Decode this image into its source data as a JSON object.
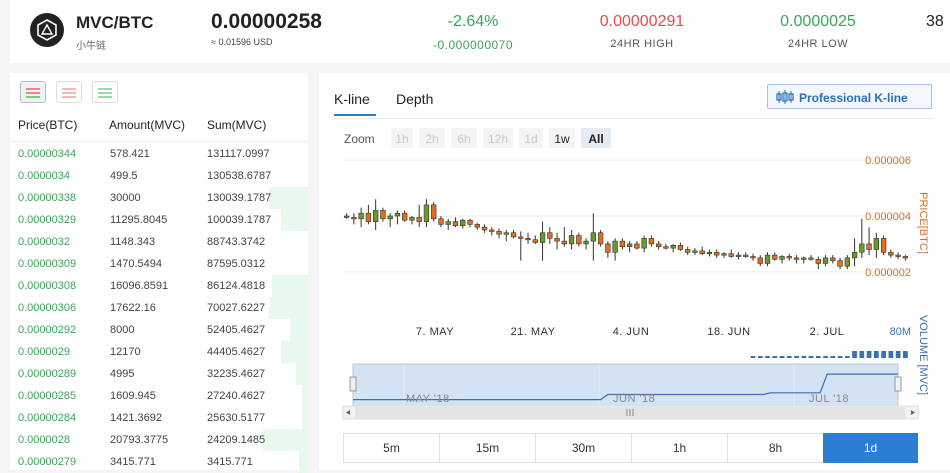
{
  "header": {
    "pair": "MVC/BTC",
    "pair_cn": "小牛链",
    "last_price": "0.00000258",
    "last_price_usd": "≈ 0.01596 USD",
    "change_pct": "-2.64%",
    "change_abs": "-0.000000070",
    "high_value": "0.00000291",
    "high_label": "24HR HIGH",
    "low_value": "0.0000025",
    "low_label": "24HR LOW",
    "volume_partial": "38"
  },
  "colors": {
    "up": "#3aa55b",
    "down": "#e24d4d",
    "accent": "#2a7fd4",
    "price_axis": "#d0702c",
    "volume_axis": "#3a6fb0"
  },
  "order_book": {
    "columns": [
      "Price(BTC)",
      "Amount(MVC)",
      "Sum(MVC)"
    ],
    "rows": [
      {
        "price": "0.00000344",
        "amount": "578.421",
        "sum": "131117.0997",
        "depth": 0.0
      },
      {
        "price": "0.0000034",
        "amount": "499.5",
        "sum": "130538.6787",
        "depth": 0.0
      },
      {
        "price": "0.00000338",
        "amount": "30000",
        "sum": "130039.1787",
        "depth": 0.13
      },
      {
        "price": "0.00000329",
        "amount": "11295.8045",
        "sum": "100039.1787",
        "depth": 0.09
      },
      {
        "price": "0.0000032",
        "amount": "1148.343",
        "sum": "88743.3742",
        "depth": 0.0
      },
      {
        "price": "0.00000309",
        "amount": "1470.5494",
        "sum": "87595.0312",
        "depth": 0.0
      },
      {
        "price": "0.00000308",
        "amount": "16096.8591",
        "sum": "86124.4818",
        "depth": 0.12
      },
      {
        "price": "0.00000306",
        "amount": "17622.16",
        "sum": "70027.6227",
        "depth": 0.13
      },
      {
        "price": "0.00000292",
        "amount": "8000",
        "sum": "52405.4627",
        "depth": 0.06
      },
      {
        "price": "0.0000029",
        "amount": "12170",
        "sum": "44405.4627",
        "depth": 0.09
      },
      {
        "price": "0.00000289",
        "amount": "4995",
        "sum": "32235.4627",
        "depth": 0.04
      },
      {
        "price": "0.00000285",
        "amount": "1609.945",
        "sum": "27240.4627",
        "depth": 0.02
      },
      {
        "price": "0.00000284",
        "amount": "1421.3692",
        "sum": "25630.5177",
        "depth": 0.02
      },
      {
        "price": "0.0000028",
        "amount": "20793.3775",
        "sum": "24209.1485",
        "depth": 0.15
      },
      {
        "price": "0.00000279",
        "amount": "3415.771",
        "sum": "3415.771",
        "depth": 0.03
      }
    ]
  },
  "chart_panel": {
    "tabs": [
      "K-line",
      "Depth"
    ],
    "active_tab": "K-line",
    "pro_button": "Professional K-line",
    "zoom_label": "Zoom",
    "zoom_options": [
      "1h",
      "2h",
      "6h",
      "12h",
      "1d",
      "1w",
      "All"
    ],
    "zoom_active": "All",
    "intervals": [
      "5m",
      "15m",
      "30m",
      "1h",
      "8h",
      "1d"
    ],
    "interval_active": "1d"
  },
  "chart_data": {
    "type": "candlestick",
    "y_axis_label": "PRICE[BTC]",
    "y_ticks": [
      "0.000006",
      "0.000004",
      "0.000002"
    ],
    "ylim": [
      1.6e-06,
      6.4e-06
    ],
    "volume_axis_label": "VOLUME [MVC]",
    "volume_tick": "80M",
    "x_ticks": [
      "7. MAY",
      "21. MAY",
      "4. JUN",
      "18. JUN",
      "2. JUL"
    ],
    "navigator_labels": [
      "MAY '18",
      "JUN '18",
      "JUL '18"
    ],
    "ohlc": [
      [
        4.0,
        4.1,
        3.9,
        4.0
      ],
      [
        3.95,
        4.1,
        3.7,
        3.9
      ],
      [
        3.9,
        4.3,
        3.6,
        4.1
      ],
      [
        4.1,
        4.4,
        3.7,
        3.8
      ],
      [
        3.8,
        4.6,
        3.5,
        4.2
      ],
      [
        4.2,
        4.3,
        3.8,
        3.9
      ],
      [
        3.9,
        4.1,
        3.6,
        4.0
      ],
      [
        4.0,
        4.2,
        3.7,
        4.1
      ],
      [
        4.1,
        4.2,
        3.8,
        3.85
      ],
      [
        3.85,
        4.0,
        3.7,
        3.95
      ],
      [
        3.95,
        4.4,
        3.6,
        3.8
      ],
      [
        3.8,
        4.6,
        3.6,
        4.4
      ],
      [
        4.4,
        4.5,
        3.8,
        3.9
      ],
      [
        3.9,
        4.0,
        3.6,
        3.7
      ],
      [
        3.7,
        3.9,
        3.5,
        3.8
      ],
      [
        3.8,
        3.95,
        3.6,
        3.65
      ],
      [
        3.65,
        3.9,
        3.55,
        3.85
      ],
      [
        3.85,
        3.9,
        3.6,
        3.7
      ],
      [
        3.7,
        3.75,
        3.5,
        3.6
      ],
      [
        3.6,
        3.7,
        3.4,
        3.5
      ],
      [
        3.5,
        3.6,
        3.3,
        3.45
      ],
      [
        3.45,
        3.55,
        3.2,
        3.35
      ],
      [
        3.35,
        3.5,
        3.1,
        3.4
      ],
      [
        3.4,
        3.5,
        3.2,
        3.25
      ],
      [
        3.25,
        3.45,
        2.4,
        3.2
      ],
      [
        3.2,
        3.4,
        3.0,
        3.15
      ],
      [
        3.15,
        3.3,
        3.0,
        3.05
      ],
      [
        3.05,
        3.8,
        2.4,
        3.4
      ],
      [
        3.4,
        3.6,
        3.0,
        3.2
      ],
      [
        3.2,
        3.4,
        2.8,
        3.1
      ],
      [
        3.1,
        3.6,
        2.9,
        3.0
      ],
      [
        3.0,
        3.5,
        2.8,
        3.3
      ],
      [
        3.3,
        3.4,
        2.9,
        3.0
      ],
      [
        3.0,
        3.2,
        2.8,
        3.1
      ],
      [
        3.1,
        4.1,
        2.4,
        3.4
      ],
      [
        3.4,
        3.5,
        2.9,
        3.0
      ],
      [
        3.0,
        3.1,
        2.5,
        2.7
      ],
      [
        2.7,
        3.2,
        2.4,
        3.1
      ],
      [
        3.1,
        3.2,
        2.8,
        2.9
      ],
      [
        2.9,
        3.1,
        2.7,
        3.0
      ],
      [
        3.0,
        3.1,
        2.8,
        2.85
      ],
      [
        2.85,
        3.3,
        2.7,
        3.2
      ],
      [
        3.2,
        3.3,
        2.9,
        3.0
      ],
      [
        3.0,
        3.1,
        2.8,
        2.9
      ],
      [
        2.9,
        3.0,
        2.8,
        2.85
      ],
      [
        2.85,
        3.0,
        2.7,
        2.95
      ],
      [
        2.95,
        3.05,
        2.75,
        2.8
      ],
      [
        2.8,
        2.9,
        2.6,
        2.7
      ],
      [
        2.7,
        2.85,
        2.6,
        2.75
      ],
      [
        2.75,
        2.9,
        2.6,
        2.65
      ],
      [
        2.65,
        2.8,
        2.55,
        2.7
      ],
      [
        2.7,
        2.8,
        2.5,
        2.6
      ],
      [
        2.6,
        2.7,
        2.5,
        2.65
      ],
      [
        2.65,
        2.8,
        2.5,
        2.55
      ],
      [
        2.55,
        2.7,
        2.45,
        2.6
      ],
      [
        2.6,
        2.7,
        2.5,
        2.55
      ],
      [
        2.55,
        2.65,
        2.4,
        2.5
      ],
      [
        2.5,
        2.6,
        2.2,
        2.3
      ],
      [
        2.3,
        2.7,
        2.2,
        2.6
      ],
      [
        2.6,
        2.7,
        2.4,
        2.45
      ],
      [
        2.45,
        2.6,
        2.3,
        2.55
      ],
      [
        2.55,
        2.65,
        2.4,
        2.5
      ],
      [
        2.5,
        2.6,
        2.3,
        2.45
      ],
      [
        2.45,
        2.55,
        2.3,
        2.5
      ],
      [
        2.5,
        2.6,
        2.4,
        2.45
      ],
      [
        2.45,
        2.55,
        2.1,
        2.3
      ],
      [
        2.3,
        2.6,
        2.2,
        2.5
      ],
      [
        2.5,
        2.6,
        2.3,
        2.4
      ],
      [
        2.4,
        2.5,
        2.1,
        2.2
      ],
      [
        2.2,
        2.6,
        2.1,
        2.5
      ],
      [
        2.5,
        3.2,
        2.2,
        2.7
      ],
      [
        2.7,
        3.9,
        2.5,
        3.0
      ],
      [
        3.0,
        3.6,
        2.6,
        2.8
      ],
      [
        2.8,
        3.4,
        2.5,
        3.2
      ],
      [
        3.2,
        3.3,
        2.6,
        2.7
      ],
      [
        2.7,
        2.8,
        2.5,
        2.6
      ],
      [
        2.6,
        2.7,
        2.45,
        2.55
      ],
      [
        2.55,
        2.6,
        2.4,
        2.5
      ]
    ],
    "volume_active_from": 56,
    "volume_high_from": 70
  }
}
